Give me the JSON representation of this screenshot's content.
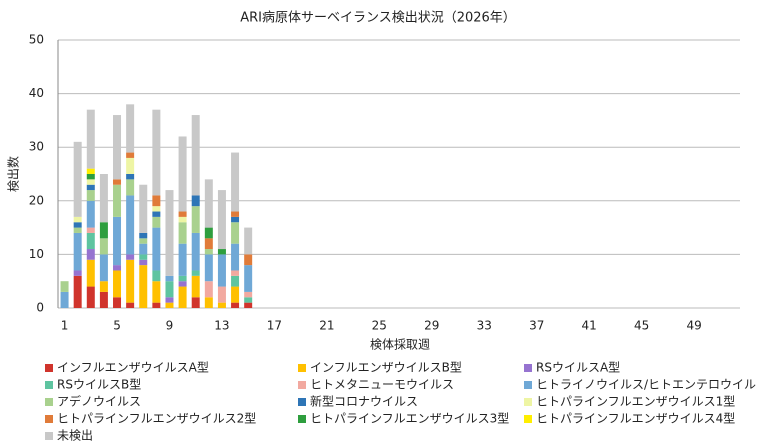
{
  "chart_data": {
    "type": "stacked-bar",
    "title": "ARI病原体サーベイランス検出状況（2026年）",
    "x_label": "検体採取週",
    "y_label": "検出数",
    "ylim": [
      0,
      50
    ],
    "yticks": [
      0,
      10,
      20,
      30,
      40,
      50
    ],
    "grid": true,
    "categories": [
      1,
      null,
      null,
      null,
      5,
      null,
      null,
      null,
      9,
      null,
      null,
      null,
      13,
      null,
      null,
      null,
      17,
      null,
      null,
      null,
      21,
      null,
      null,
      null,
      25,
      null,
      null,
      null,
      29,
      null,
      null,
      null,
      33,
      null,
      null,
      null,
      37,
      null,
      null,
      null,
      41,
      null,
      null,
      null,
      45,
      null,
      null,
      null,
      49,
      null,
      null,
      null
    ],
    "series": [
      {
        "name": "インフルエンザウイルスA型",
        "color": "#d0342c",
        "values": [
          0,
          6,
          4,
          3,
          2,
          1,
          0,
          1,
          0,
          0,
          2,
          0,
          0,
          1,
          1,
          null,
          null,
          null,
          null,
          null,
          null,
          null,
          null,
          null,
          null,
          null,
          null,
          null,
          null,
          null,
          null,
          null,
          null,
          null,
          null,
          null,
          null,
          null,
          null,
          null,
          null,
          null,
          null,
          null,
          null,
          null,
          null,
          null,
          null,
          null,
          null,
          null
        ]
      },
      {
        "name": "インフルエンザウイルスB型",
        "color": "#ffc000",
        "values": [
          0,
          0,
          5,
          2,
          5,
          8,
          8,
          4,
          1,
          4,
          4,
          2,
          1,
          3,
          0,
          null,
          null,
          null,
          null,
          null,
          null,
          null,
          null,
          null,
          null,
          null,
          null,
          null,
          null,
          null,
          null,
          null,
          null,
          null,
          null,
          null,
          null,
          null,
          null,
          null,
          null,
          null,
          null,
          null,
          null,
          null,
          null,
          null,
          null,
          null,
          null,
          null
        ]
      },
      {
        "name": "RSウイルスA型",
        "color": "#9673d0",
        "values": [
          0,
          1,
          2,
          0,
          1,
          1,
          1,
          0,
          1,
          1,
          0,
          0,
          0,
          0,
          0,
          null,
          null,
          null,
          null,
          null,
          null,
          null,
          null,
          null,
          null,
          null,
          null,
          null,
          null,
          null,
          null,
          null,
          null,
          null,
          null,
          null,
          null,
          null,
          null,
          null,
          null,
          null,
          null,
          null,
          null,
          null,
          null,
          null,
          null,
          null,
          null,
          null
        ]
      },
      {
        "name": "RSウイルスB型",
        "color": "#5ec4a0",
        "values": [
          0,
          0,
          3,
          0,
          0,
          0,
          1,
          2,
          3,
          1,
          1,
          0,
          0,
          2,
          1,
          null,
          null,
          null,
          null,
          null,
          null,
          null,
          null,
          null,
          null,
          null,
          null,
          null,
          null,
          null,
          null,
          null,
          null,
          null,
          null,
          null,
          null,
          null,
          null,
          null,
          null,
          null,
          null,
          null,
          null,
          null,
          null,
          null,
          null,
          null,
          null,
          null
        ]
      },
      {
        "name": "ヒトメタニューモウイルス",
        "color": "#f2a9a0",
        "values": [
          0,
          0,
          1,
          0,
          0,
          0,
          0,
          0,
          0,
          0,
          0,
          3,
          3,
          1,
          1,
          null,
          null,
          null,
          null,
          null,
          null,
          null,
          null,
          null,
          null,
          null,
          null,
          null,
          null,
          null,
          null,
          null,
          null,
          null,
          null,
          null,
          null,
          null,
          null,
          null,
          null,
          null,
          null,
          null,
          null,
          null,
          null,
          null,
          null,
          null,
          null,
          null
        ]
      },
      {
        "name": "ヒトライノウイルス/ヒトエンテロウイルス",
        "color": "#6fa8d6",
        "values": [
          3,
          7,
          5,
          5,
          9,
          11,
          2,
          8,
          1,
          6,
          7,
          5,
          6,
          5,
          5,
          null,
          null,
          null,
          null,
          null,
          null,
          null,
          null,
          null,
          null,
          null,
          null,
          null,
          null,
          null,
          null,
          null,
          null,
          null,
          null,
          null,
          null,
          null,
          null,
          null,
          null,
          null,
          null,
          null,
          null,
          null,
          null,
          null,
          null,
          null,
          null,
          null
        ]
      },
      {
        "name": "アデノウイルス",
        "color": "#a9d18e",
        "values": [
          2,
          1,
          2,
          3,
          6,
          3,
          1,
          2,
          0,
          4,
          5,
          1,
          0,
          4,
          0,
          null,
          null,
          null,
          null,
          null,
          null,
          null,
          null,
          null,
          null,
          null,
          null,
          null,
          null,
          null,
          null,
          null,
          null,
          null,
          null,
          null,
          null,
          null,
          null,
          null,
          null,
          null,
          null,
          null,
          null,
          null,
          null,
          null,
          null,
          null,
          null,
          null
        ]
      },
      {
        "name": "新型コロナウイルス",
        "color": "#2e75b6",
        "values": [
          0,
          1,
          1,
          0,
          0,
          1,
          1,
          1,
          0,
          0,
          2,
          0,
          0,
          1,
          0,
          null,
          null,
          null,
          null,
          null,
          null,
          null,
          null,
          null,
          null,
          null,
          null,
          null,
          null,
          null,
          null,
          null,
          null,
          null,
          null,
          null,
          null,
          null,
          null,
          null,
          null,
          null,
          null,
          null,
          null,
          null,
          null,
          null,
          null,
          null,
          null,
          null
        ]
      },
      {
        "name": "ヒトパラインフルエンザウイルス1型",
        "color": "#eef5a4",
        "values": [
          0,
          1,
          1,
          0,
          0,
          3,
          0,
          1,
          0,
          1,
          0,
          0,
          0,
          0,
          0,
          null,
          null,
          null,
          null,
          null,
          null,
          null,
          null,
          null,
          null,
          null,
          null,
          null,
          null,
          null,
          null,
          null,
          null,
          null,
          null,
          null,
          null,
          null,
          null,
          null,
          null,
          null,
          null,
          null,
          null,
          null,
          null,
          null,
          null,
          null,
          null,
          null
        ]
      },
      {
        "name": "ヒトパラインフルエンザウイルス2型",
        "color": "#e07b39",
        "values": [
          0,
          0,
          0,
          0,
          1,
          1,
          0,
          2,
          0,
          1,
          0,
          2,
          0,
          1,
          2,
          null,
          null,
          null,
          null,
          null,
          null,
          null,
          null,
          null,
          null,
          null,
          null,
          null,
          null,
          null,
          null,
          null,
          null,
          null,
          null,
          null,
          null,
          null,
          null,
          null,
          null,
          null,
          null,
          null,
          null,
          null,
          null,
          null,
          null,
          null,
          null,
          null
        ]
      },
      {
        "name": "ヒトパラインフルエンザウイルス3型",
        "color": "#2e9e3e",
        "values": [
          0,
          0,
          1,
          3,
          0,
          0,
          0,
          0,
          0,
          0,
          0,
          2,
          1,
          0,
          0,
          null,
          null,
          null,
          null,
          null,
          null,
          null,
          null,
          null,
          null,
          null,
          null,
          null,
          null,
          null,
          null,
          null,
          null,
          null,
          null,
          null,
          null,
          null,
          null,
          null,
          null,
          null,
          null,
          null,
          null,
          null,
          null,
          null,
          null,
          null,
          null,
          null
        ]
      },
      {
        "name": "ヒトパラインフルエンザウイルス4型",
        "color": "#ffee00",
        "values": [
          0,
          0,
          1,
          0,
          0,
          0,
          0,
          0,
          0,
          0,
          0,
          0,
          0,
          0,
          0,
          null,
          null,
          null,
          null,
          null,
          null,
          null,
          null,
          null,
          null,
          null,
          null,
          null,
          null,
          null,
          null,
          null,
          null,
          null,
          null,
          null,
          null,
          null,
          null,
          null,
          null,
          null,
          null,
          null,
          null,
          null,
          null,
          null,
          null,
          null,
          null,
          null
        ]
      },
      {
        "name": "未検出",
        "color": "#c8c8c8",
        "values": [
          0,
          14,
          11,
          9,
          12,
          9,
          9,
          16,
          16,
          14,
          15,
          9,
          11,
          11,
          5,
          null,
          null,
          null,
          null,
          null,
          null,
          null,
          null,
          null,
          null,
          null,
          null,
          null,
          null,
          null,
          null,
          null,
          null,
          null,
          null,
          null,
          null,
          null,
          null,
          null,
          null,
          null,
          null,
          null,
          null,
          null,
          null,
          null,
          null,
          null,
          null,
          null
        ]
      }
    ]
  }
}
